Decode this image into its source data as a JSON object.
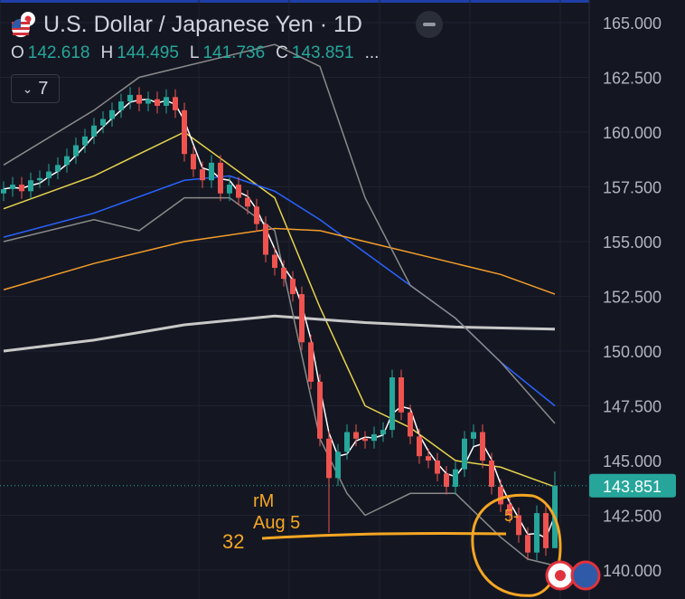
{
  "header": {
    "title": "U.S. Dollar / Japanese Yen · 1D",
    "flag_icon": "us-jp-flag-icon",
    "ohlc": {
      "o_label": "O",
      "o": "142.618",
      "h_label": "H",
      "h": "144.495",
      "l_label": "L",
      "l": "141.736",
      "c_label": "C",
      "c": "143.851",
      "more": "..."
    },
    "indicators_toggle": "7"
  },
  "annotations": {
    "line1": "rM",
    "line2": "Aug 5",
    "number": "32",
    "marker": "5-",
    "color": "#f5a623"
  },
  "colors": {
    "up": "#26a69a",
    "down": "#ef5350",
    "background": "#141722"
  },
  "chart_data": {
    "type": "candlestick",
    "title": "U.S. Dollar / Japanese Yen · 1D",
    "ylim": [
      139.5,
      166
    ],
    "yticks": [
      "165.000",
      "162.500",
      "160.000",
      "157.500",
      "155.000",
      "152.500",
      "150.000",
      "147.500",
      "145.000",
      "142.500",
      "140.000"
    ],
    "last_price_label": "143.851",
    "first_open": 157.2,
    "closes": [
      157.4,
      157.6,
      157.3,
      157.8,
      157.9,
      158.2,
      158.5,
      158.9,
      159.4,
      159.8,
      160.3,
      160.6,
      161.0,
      161.4,
      161.7,
      161.3,
      161.5,
      161.2,
      161.6,
      161.0,
      159.0,
      158.3,
      157.8,
      158.6,
      157.2,
      157.6,
      157.0,
      156.6,
      155.8,
      154.4,
      153.8,
      153.3,
      152.6,
      150.4,
      148.6,
      146.0,
      144.2,
      145.4,
      146.3,
      146.0,
      145.9,
      146.2,
      146.4,
      148.8,
      147.2,
      146.1,
      145.2,
      145.0,
      144.4,
      143.8,
      144.6,
      146.0,
      146.3,
      145.0,
      143.8,
      143.0,
      142.5,
      141.6,
      140.8,
      142.6,
      141.0,
      143.851
    ],
    "series": [
      {
        "color": "#e8d44d",
        "points": [
          [
            0,
            156.5
          ],
          [
            10,
            158
          ],
          [
            20,
            160
          ],
          [
            25,
            158.5
          ],
          [
            30,
            157
          ],
          [
            35,
            152
          ],
          [
            40,
            147.5
          ],
          [
            45,
            146.5
          ],
          [
            50,
            145
          ],
          [
            55,
            144.7
          ],
          [
            61,
            143.8
          ]
        ]
      },
      {
        "color": "#2962ff",
        "points": [
          [
            0,
            155.2
          ],
          [
            10,
            156.3
          ],
          [
            20,
            157.8
          ],
          [
            25,
            158
          ],
          [
            30,
            157.3
          ],
          [
            35,
            156
          ],
          [
            40,
            154.5
          ],
          [
            45,
            153
          ],
          [
            50,
            151.5
          ],
          [
            55,
            149.5
          ],
          [
            61,
            147.5
          ]
        ]
      },
      {
        "color": "#f59d2a",
        "points": [
          [
            0,
            152.8
          ],
          [
            10,
            154
          ],
          [
            20,
            155
          ],
          [
            30,
            155.6
          ],
          [
            35,
            155.5
          ],
          [
            40,
            155
          ],
          [
            50,
            154
          ],
          [
            55,
            153.5
          ],
          [
            61,
            152.6
          ]
        ]
      },
      {
        "color": "#c8c8c8",
        "points": [
          [
            0,
            150
          ],
          [
            10,
            150.5
          ],
          [
            20,
            151.2
          ],
          [
            30,
            151.6
          ],
          [
            40,
            151.3
          ],
          [
            50,
            151.1
          ],
          [
            61,
            151
          ]
        ]
      },
      {
        "color": "#8a8a8a",
        "points": [
          [
            0,
            158.5
          ],
          [
            10,
            161
          ],
          [
            15,
            162.5
          ],
          [
            20,
            163
          ],
          [
            25,
            163.5
          ],
          [
            30,
            164
          ],
          [
            35,
            163
          ],
          [
            40,
            157
          ],
          [
            45,
            153
          ],
          [
            50,
            151.5
          ],
          [
            55,
            149.5
          ],
          [
            61,
            146.7
          ]
        ]
      },
      {
        "color": "#8a8a8a",
        "points": [
          [
            0,
            155
          ],
          [
            10,
            156
          ],
          [
            15,
            155.5
          ],
          [
            20,
            157
          ],
          [
            25,
            157
          ],
          [
            30,
            155.5
          ],
          [
            35,
            146
          ],
          [
            38,
            143.5
          ],
          [
            40,
            142.5
          ],
          [
            45,
            143.5
          ],
          [
            50,
            143.5
          ],
          [
            55,
            141.5
          ],
          [
            58,
            140.5
          ],
          [
            61,
            140.2
          ]
        ]
      }
    ]
  }
}
